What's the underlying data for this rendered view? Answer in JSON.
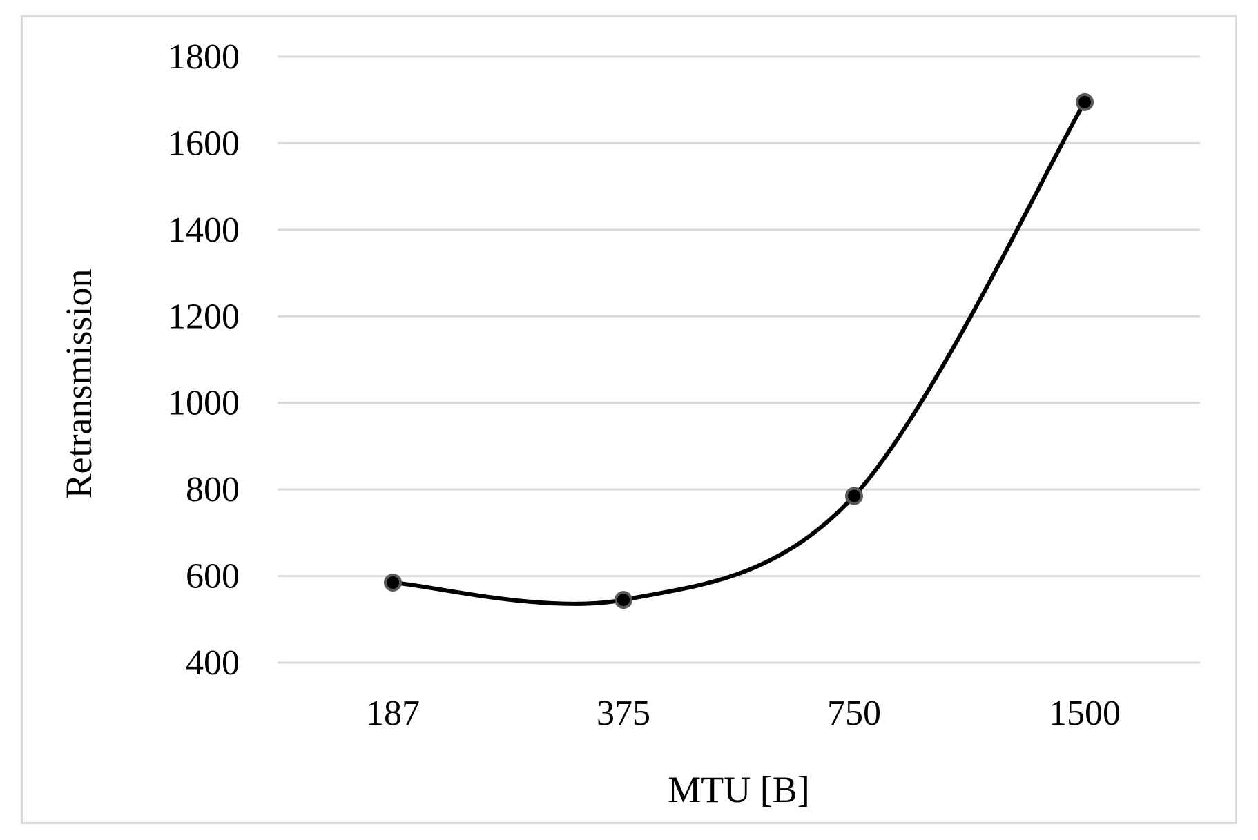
{
  "chart_data": {
    "type": "line",
    "title": "",
    "xlabel": "MTU [B]",
    "ylabel": "Retransmission",
    "categories": [
      "187",
      "375",
      "750",
      "1500"
    ],
    "series": [
      {
        "values": [
          585,
          545,
          785,
          1695
        ]
      }
    ],
    "ylim": [
      400,
      1800
    ],
    "yticks": [
      "400",
      "600",
      "800",
      "1000",
      "1200",
      "1400",
      "1600",
      "1800"
    ],
    "grid": true,
    "legend": "none",
    "colors": {
      "line": "#000000",
      "marker": "#000000",
      "marker_edge": "#595959",
      "grid": "#d9d9d9"
    }
  }
}
